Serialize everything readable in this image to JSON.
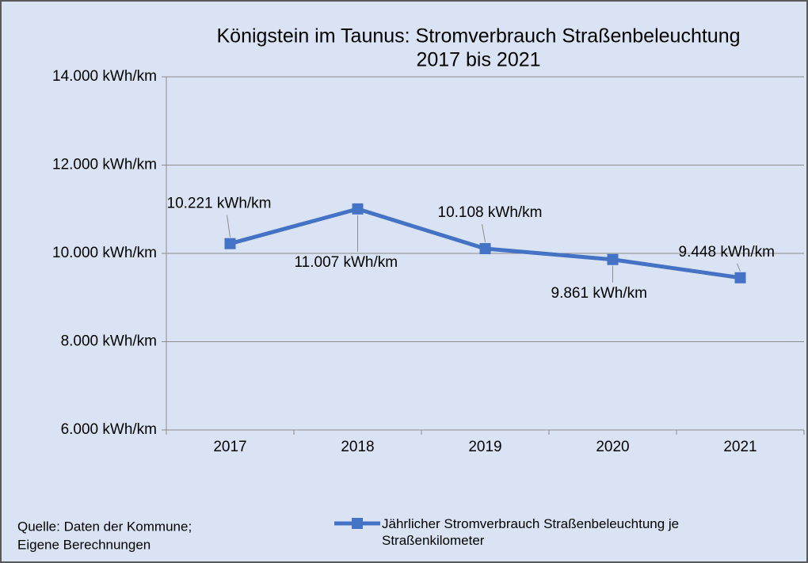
{
  "chart_data": {
    "type": "line",
    "title": [
      "Königstein im Taunus: Stromverbrauch Straßenbeleuchtung",
      "2017 bis 2021"
    ],
    "categories": [
      "2017",
      "2018",
      "2019",
      "2020",
      "2021"
    ],
    "series": [
      {
        "name": "Jährlicher Stromverbrauch Straßenbeleuchtung je Straßenkilometer",
        "color": "#4472c4",
        "values": [
          10221,
          11007,
          10108,
          9861,
          9448
        ],
        "value_labels": [
          "10.221 kWh/km",
          "11.007 kWh/km",
          "10.108 kWh/km",
          "9.861 kWh/km",
          "9.448 kWh/km"
        ]
      }
    ],
    "ylim": [
      6000,
      14000
    ],
    "yticks": [
      {
        "value": 6000,
        "label": "6.000 kWh/km"
      },
      {
        "value": 8000,
        "label": "8.000 kWh/km"
      },
      {
        "value": 10000,
        "label": "10.000 kWh/km"
      },
      {
        "value": 12000,
        "label": "12.000 kWh/km"
      },
      {
        "value": 14000,
        "label": "14.000 kWh/km"
      }
    ],
    "grid": true,
    "legend": "bottom",
    "source": [
      "Quelle: Daten der Kommune;",
      "Eigene Berechnungen"
    ]
  }
}
